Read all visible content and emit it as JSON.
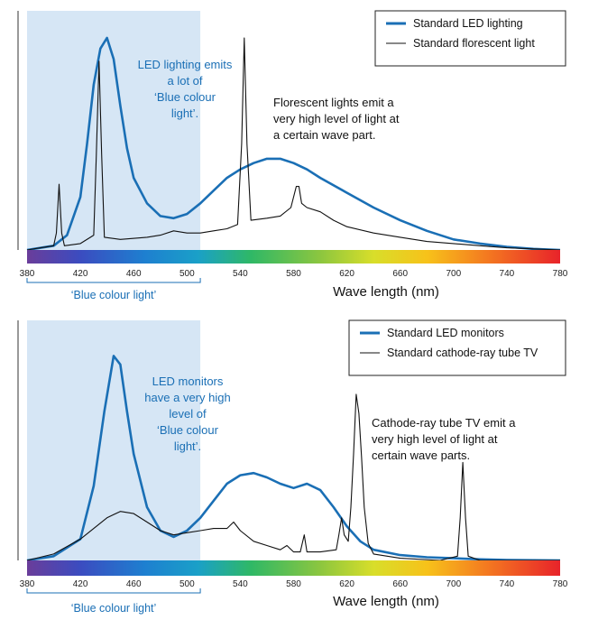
{
  "colors": {
    "led": "#1a6fb5",
    "other": "#111111",
    "blue_region": "#d6e6f5"
  },
  "chart_data": [
    {
      "type": "line",
      "xlabel": "Wave length (nm)",
      "ylabel": "",
      "xlim": [
        380,
        780
      ],
      "xticks": [
        "380",
        "420",
        "460",
        "500",
        "540",
        "580",
        "620",
        "660",
        "700",
        "740",
        "780"
      ],
      "blue_region": {
        "from": 380,
        "to": 510,
        "label": "‘Blue colour light’"
      },
      "legend": {
        "position": "top-right"
      },
      "annotations": [
        {
          "color": "led",
          "lines": [
            "LED lighting emits",
            "a lot of",
            "‘Blue colour",
            "light’."
          ]
        },
        {
          "color": "other",
          "lines": [
            "Florescent lights emit a",
            "very high level of light at",
            "a certain wave part."
          ]
        }
      ],
      "series": [
        {
          "name": "Standard LED lighting",
          "color": "led",
          "points": [
            [
              380,
              0.0
            ],
            [
              400,
              0.02
            ],
            [
              410,
              0.07
            ],
            [
              420,
              0.25
            ],
            [
              425,
              0.5
            ],
            [
              430,
              0.78
            ],
            [
              435,
              0.95
            ],
            [
              440,
              1.0
            ],
            [
              445,
              0.9
            ],
            [
              450,
              0.68
            ],
            [
              455,
              0.48
            ],
            [
              460,
              0.34
            ],
            [
              470,
              0.22
            ],
            [
              480,
              0.16
            ],
            [
              490,
              0.15
            ],
            [
              500,
              0.17
            ],
            [
              510,
              0.22
            ],
            [
              520,
              0.28
            ],
            [
              530,
              0.34
            ],
            [
              540,
              0.38
            ],
            [
              550,
              0.41
            ],
            [
              560,
              0.43
            ],
            [
              570,
              0.43
            ],
            [
              580,
              0.41
            ],
            [
              590,
              0.38
            ],
            [
              600,
              0.34
            ],
            [
              620,
              0.27
            ],
            [
              640,
              0.2
            ],
            [
              660,
              0.14
            ],
            [
              680,
              0.09
            ],
            [
              700,
              0.05
            ],
            [
              720,
              0.03
            ],
            [
              740,
              0.015
            ],
            [
              760,
              0.005
            ],
            [
              780,
              0.0
            ]
          ]
        },
        {
          "name": "Standard florescent light",
          "color": "other",
          "points": [
            [
              380,
              0.0
            ],
            [
              390,
              0.01
            ],
            [
              400,
              0.02
            ],
            [
              402,
              0.08
            ],
            [
              404,
              0.31
            ],
            [
              406,
              0.08
            ],
            [
              408,
              0.02
            ],
            [
              420,
              0.03
            ],
            [
              430,
              0.07
            ],
            [
              432,
              0.45
            ],
            [
              434,
              0.89
            ],
            [
              436,
              0.45
            ],
            [
              438,
              0.06
            ],
            [
              450,
              0.05
            ],
            [
              470,
              0.06
            ],
            [
              480,
              0.07
            ],
            [
              490,
              0.09
            ],
            [
              500,
              0.08
            ],
            [
              510,
              0.08
            ],
            [
              520,
              0.09
            ],
            [
              530,
              0.1
            ],
            [
              538,
              0.12
            ],
            [
              541,
              0.5
            ],
            [
              543,
              1.0
            ],
            [
              545,
              0.5
            ],
            [
              548,
              0.14
            ],
            [
              560,
              0.15
            ],
            [
              570,
              0.16
            ],
            [
              578,
              0.2
            ],
            [
              582,
              0.3
            ],
            [
              584,
              0.3
            ],
            [
              586,
              0.22
            ],
            [
              590,
              0.2
            ],
            [
              600,
              0.18
            ],
            [
              610,
              0.14
            ],
            [
              620,
              0.11
            ],
            [
              640,
              0.08
            ],
            [
              660,
              0.06
            ],
            [
              680,
              0.04
            ],
            [
              700,
              0.03
            ],
            [
              720,
              0.02
            ],
            [
              740,
              0.01
            ],
            [
              760,
              0.005
            ],
            [
              780,
              0.0
            ]
          ]
        }
      ]
    },
    {
      "type": "line",
      "xlabel": "Wave length (nm)",
      "ylabel": "",
      "xlim": [
        380,
        780
      ],
      "xticks": [
        "380",
        "420",
        "460",
        "500",
        "540",
        "580",
        "620",
        "660",
        "700",
        "740",
        "780"
      ],
      "blue_region": {
        "from": 380,
        "to": 510,
        "label": "‘Blue colour light’"
      },
      "legend": {
        "position": "top-right"
      },
      "annotations": [
        {
          "color": "led",
          "lines": [
            "LED monitors",
            "have a very high",
            "level of",
            "‘Blue colour",
            "light’."
          ]
        },
        {
          "color": "other",
          "lines": [
            "Cathode-ray tube TV emit a",
            "very high level of light at",
            "certain wave parts."
          ]
        }
      ],
      "series": [
        {
          "name": "Standard LED monitors",
          "color": "led",
          "points": [
            [
              380,
              0.0
            ],
            [
              400,
              0.02
            ],
            [
              420,
              0.1
            ],
            [
              430,
              0.35
            ],
            [
              438,
              0.7
            ],
            [
              445,
              0.96
            ],
            [
              450,
              0.92
            ],
            [
              455,
              0.7
            ],
            [
              460,
              0.5
            ],
            [
              470,
              0.25
            ],
            [
              480,
              0.14
            ],
            [
              490,
              0.11
            ],
            [
              500,
              0.14
            ],
            [
              510,
              0.2
            ],
            [
              520,
              0.28
            ],
            [
              530,
              0.36
            ],
            [
              540,
              0.4
            ],
            [
              550,
              0.41
            ],
            [
              560,
              0.39
            ],
            [
              570,
              0.36
            ],
            [
              580,
              0.34
            ],
            [
              590,
              0.36
            ],
            [
              600,
              0.33
            ],
            [
              610,
              0.25
            ],
            [
              620,
              0.16
            ],
            [
              630,
              0.09
            ],
            [
              640,
              0.05
            ],
            [
              660,
              0.025
            ],
            [
              680,
              0.015
            ],
            [
              700,
              0.01
            ],
            [
              720,
              0.005
            ],
            [
              740,
              0.002
            ],
            [
              780,
              0.0
            ]
          ]
        },
        {
          "name": "Standard cathode-ray tube TV",
          "color": "other",
          "points": [
            [
              380,
              0.0
            ],
            [
              400,
              0.03
            ],
            [
              420,
              0.1
            ],
            [
              440,
              0.2
            ],
            [
              450,
              0.23
            ],
            [
              460,
              0.22
            ],
            [
              470,
              0.18
            ],
            [
              480,
              0.14
            ],
            [
              490,
              0.12
            ],
            [
              500,
              0.13
            ],
            [
              510,
              0.14
            ],
            [
              520,
              0.15
            ],
            [
              530,
              0.15
            ],
            [
              535,
              0.18
            ],
            [
              540,
              0.14
            ],
            [
              550,
              0.09
            ],
            [
              560,
              0.07
            ],
            [
              570,
              0.05
            ],
            [
              575,
              0.07
            ],
            [
              580,
              0.04
            ],
            [
              585,
              0.04
            ],
            [
              588,
              0.12
            ],
            [
              590,
              0.04
            ],
            [
              600,
              0.04
            ],
            [
              612,
              0.05
            ],
            [
              614,
              0.12
            ],
            [
              616,
              0.2
            ],
            [
              618,
              0.12
            ],
            [
              621,
              0.09
            ],
            [
              623,
              0.25
            ],
            [
              625,
              0.5
            ],
            [
              627,
              0.78
            ],
            [
              629,
              0.69
            ],
            [
              631,
              0.48
            ],
            [
              633,
              0.25
            ],
            [
              636,
              0.08
            ],
            [
              640,
              0.03
            ],
            [
              660,
              0.01
            ],
            [
              690,
              0.0
            ],
            [
              703,
              0.02
            ],
            [
              705,
              0.2
            ],
            [
              707,
              0.46
            ],
            [
              709,
              0.2
            ],
            [
              711,
              0.02
            ],
            [
              720,
              0.0
            ],
            [
              780,
              0.0
            ]
          ]
        }
      ]
    }
  ]
}
